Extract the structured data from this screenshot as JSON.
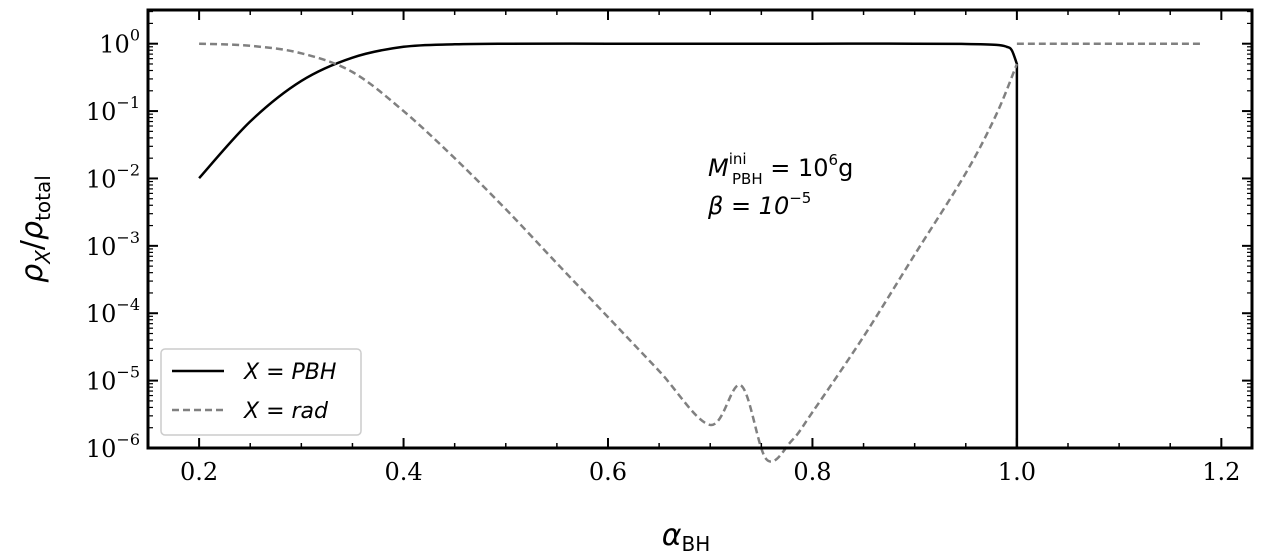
{
  "chart_data": {
    "type": "line",
    "xlabel": "α",
    "xlabel_sub": "BH",
    "ylabel": "ρ",
    "ylabel_num_sub": "X",
    "ylabel_den_sub": "total",
    "xlim": [
      0.15,
      1.23
    ],
    "ylim_log10": [
      -6,
      0.5
    ],
    "yscale": "log",
    "x_ticks": [
      0.2,
      0.4,
      0.6,
      0.8,
      1.0,
      1.2
    ],
    "x_tick_labels": [
      "0.2",
      "0.4",
      "0.6",
      "0.8",
      "1.0",
      "1.2"
    ],
    "y_ticks_exp": [
      0,
      -1,
      -2,
      -3,
      -4,
      -5,
      -6
    ],
    "y_tick_base": "10",
    "y_tick_exps": [
      "0",
      "−1",
      "−2",
      "−3",
      "−4",
      "−5",
      "−6"
    ],
    "grid": false,
    "legend_position": "lower-left",
    "series": [
      {
        "name": "X = PBH",
        "style": "solid",
        "color": "#000000",
        "x": [
          0.2,
          0.25,
          0.3,
          0.35,
          0.4,
          0.45,
          0.5,
          0.6,
          0.7,
          0.8,
          0.9,
          0.95,
          0.98,
          0.99,
          0.995,
          1.0,
          1.0
        ],
        "y": [
          0.0101,
          0.07,
          0.28,
          0.62,
          0.9,
          0.98,
          1.0,
          1.0,
          1.0,
          1.0,
          1.0,
          0.99,
          0.96,
          0.9,
          0.8,
          0.5,
          1e-06
        ]
      },
      {
        "name": "X = rad",
        "style": "dashed",
        "color": "#808080",
        "segments": [
          {
            "x": [
              0.2,
              0.25,
              0.3,
              0.35,
              0.4,
              0.45,
              0.5,
              0.55,
              0.6,
              0.65,
              0.7,
              0.73,
              0.755,
              0.78,
              0.8,
              0.85,
              0.9,
              0.95,
              0.98,
              1.0
            ],
            "y": [
              1.0,
              0.93,
              0.72,
              0.38,
              0.1,
              0.02,
              0.0035,
              0.00055,
              8.76e-05,
              1.39e-05,
              2.2e-06,
              8.5e-06,
              6.8e-07,
              1.3e-06,
              3.4e-06,
              4.5e-05,
              0.00074,
              0.012,
              0.09,
              0.5
            ]
          },
          {
            "x": [
              1.0,
              1.18
            ],
            "y": [
              1.0,
              1.0
            ]
          }
        ]
      }
    ],
    "annotation_lines": [
      {
        "base": "M",
        "sub": "PBH",
        "sup": "ini",
        "rest": " = 10",
        "rest_sup": "6",
        "tail": "g"
      },
      {
        "base": "β = 10",
        "sup": "−5"
      }
    ]
  }
}
